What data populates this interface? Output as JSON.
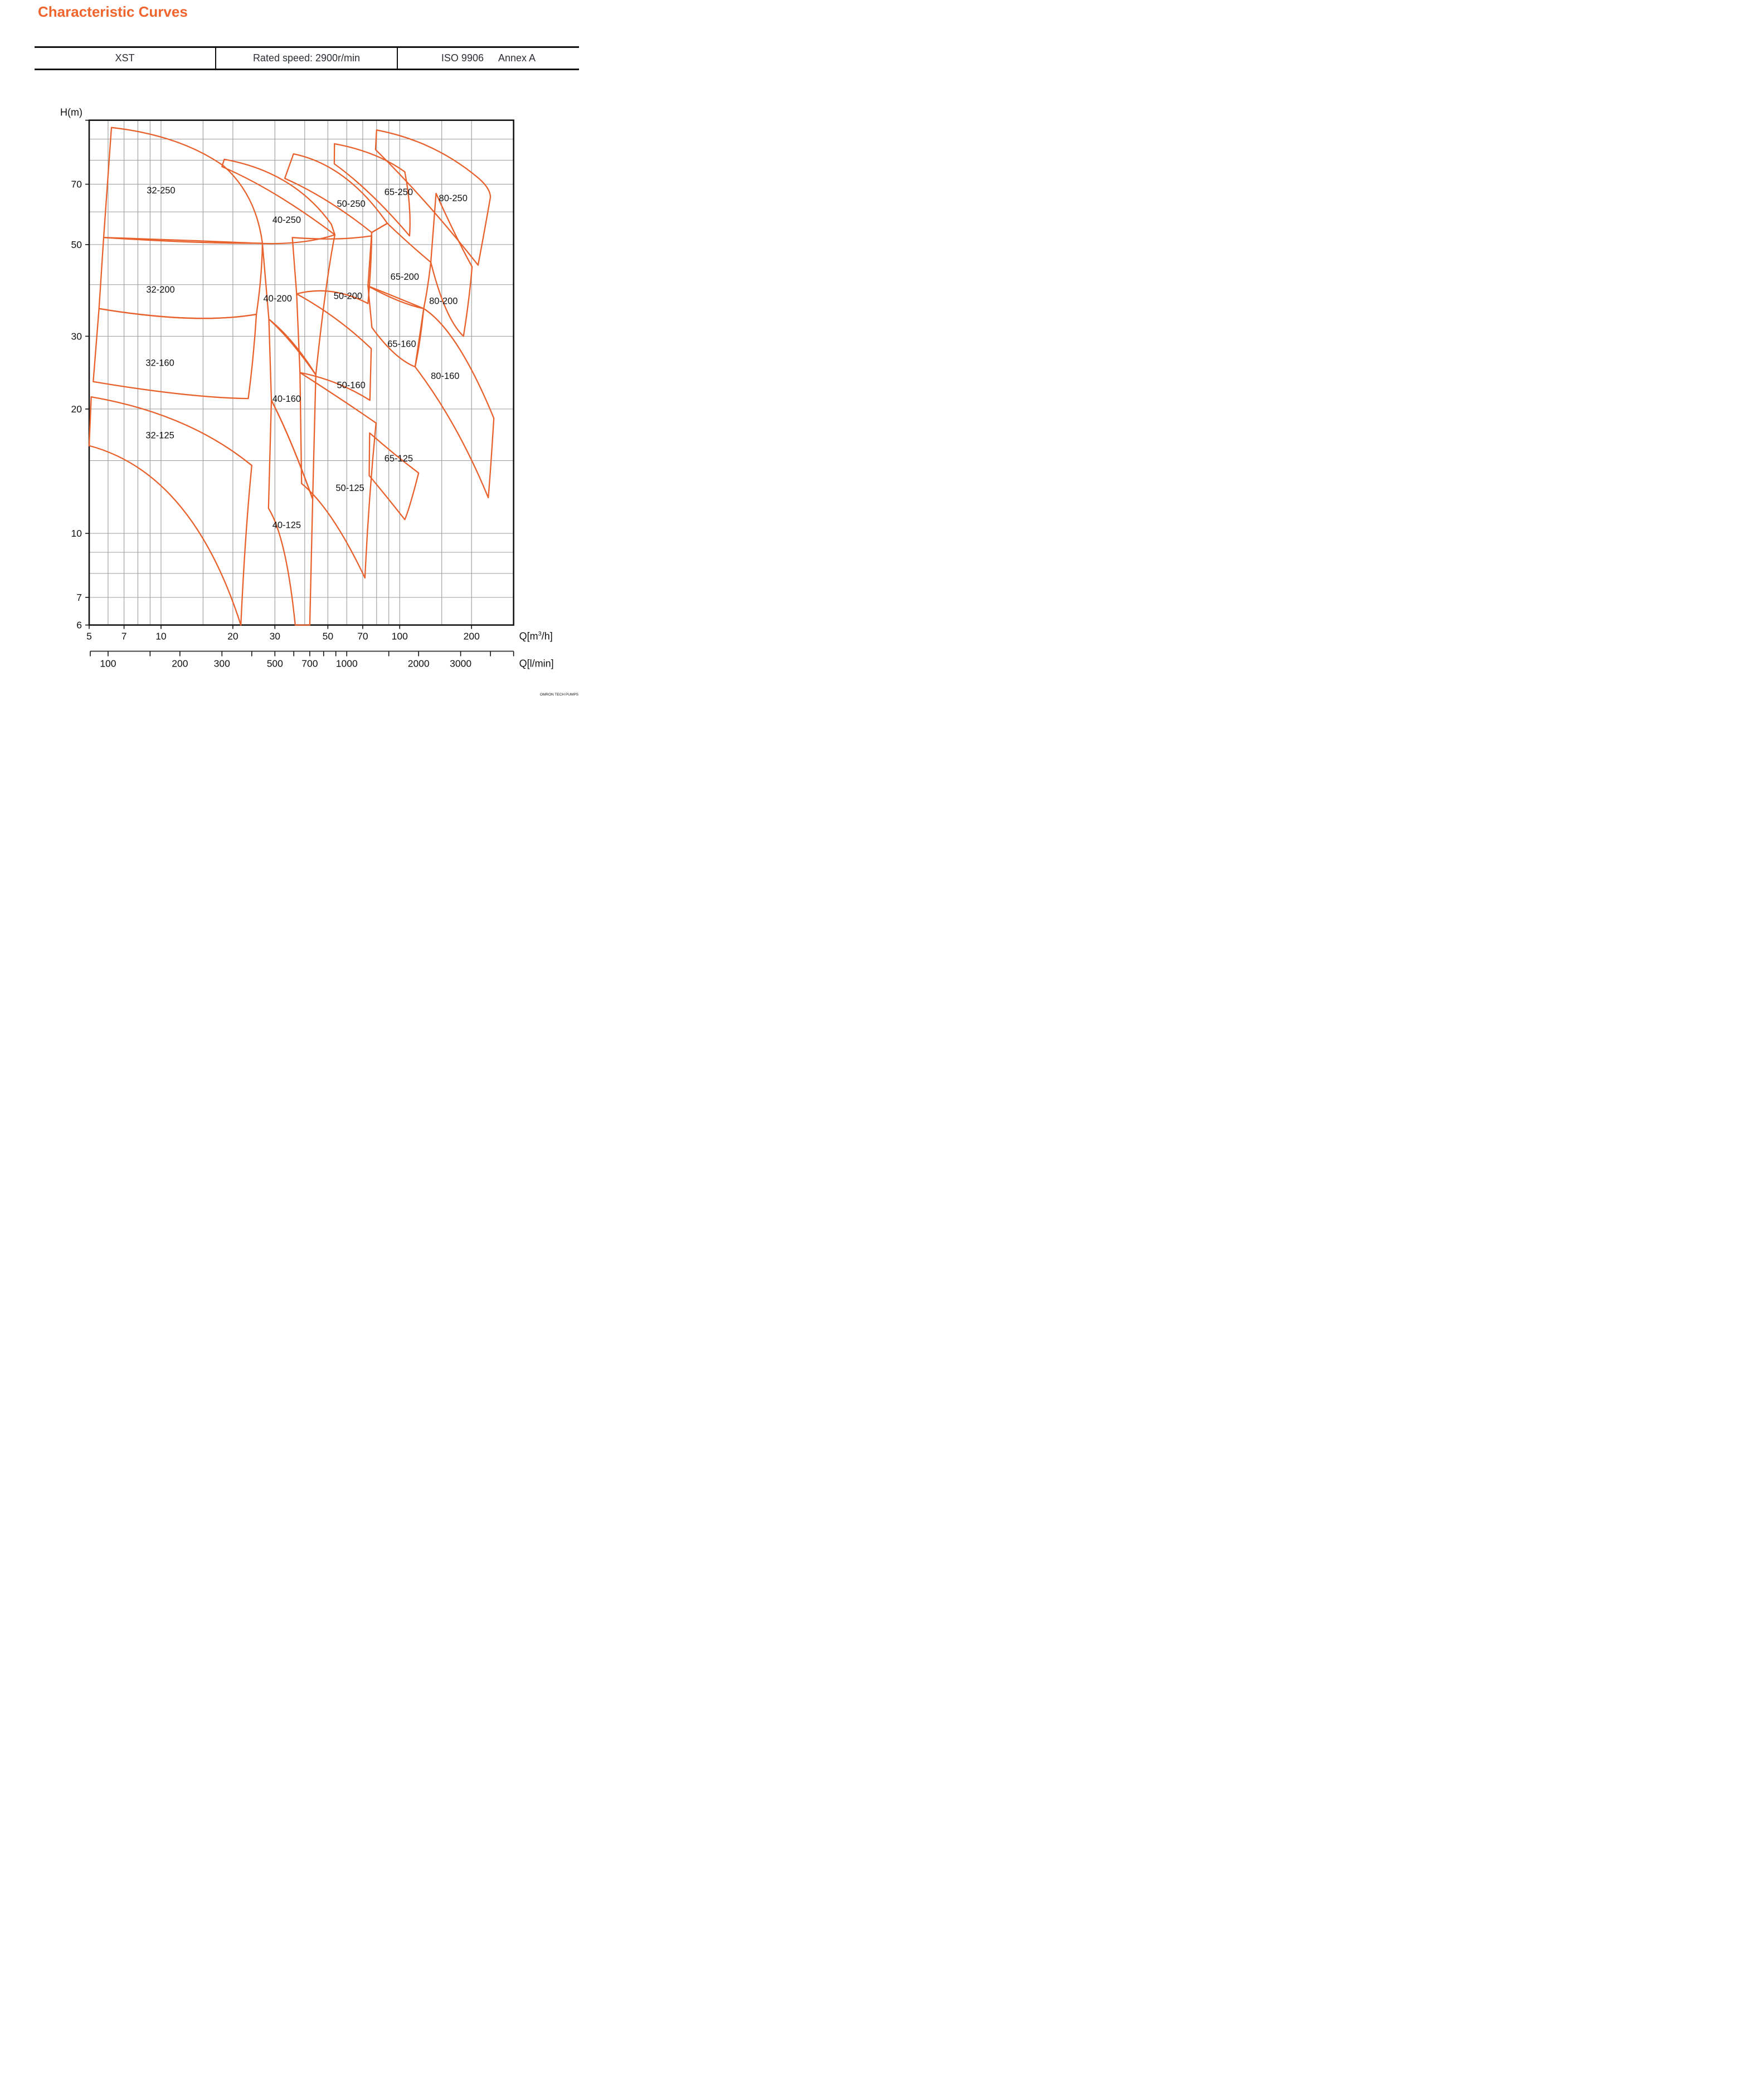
{
  "title": "Characteristic Curves",
  "title_color": "#F0642E",
  "header": {
    "series": "XST",
    "rated_speed": "Rated speed: 2900r/min",
    "standard": "ISO 9906",
    "annex": "Annex A"
  },
  "watermark": "OMRON TECH PUMPS",
  "chart_data": {
    "type": "area",
    "title": "XST pump range chart (head vs flow, log-log)",
    "style": {
      "curve_color": "#E8612C",
      "grid_color": "#9b9b9b",
      "frame_color": "#141414"
    },
    "y_axis": {
      "label": "H(m)",
      "scale": "log",
      "min": 6,
      "max": 100,
      "ticks_labeled": [
        70,
        50,
        30,
        20,
        10,
        7,
        6
      ],
      "gridlines": [
        7,
        8,
        9,
        10,
        15,
        20,
        30,
        40,
        50,
        60,
        70,
        80,
        90
      ]
    },
    "x_axis_m3h": {
      "label_pre": "Q[m",
      "label_sup": "3",
      "label_post": "/h]",
      "scale": "log",
      "min": 5,
      "max": 300,
      "ticks_labeled": [
        5,
        7,
        10,
        20,
        30,
        50,
        70,
        100,
        200
      ],
      "gridlines": [
        6,
        7,
        8,
        9,
        10,
        15,
        20,
        30,
        40,
        50,
        60,
        70,
        80,
        90,
        100,
        150,
        200
      ]
    },
    "x_axis_lmin": {
      "label": "Q[l/min]",
      "units_per_m3h": 16.6667,
      "ticks": [
        100,
        150,
        200,
        300,
        400,
        500,
        600,
        700,
        800,
        900,
        1000,
        1500,
        2000,
        3000,
        4000,
        5000
      ],
      "ticks_labeled": [
        100,
        200,
        300,
        500,
        700,
        1000,
        2000,
        3000
      ]
    },
    "regions": [
      {
        "label": "32-250",
        "label_at": [
          10,
          67.8
        ],
        "path": [
          [
            "M",
            6.2,
            96
          ],
          [
            "Q",
            12,
            92,
            18.3,
            77.5
          ],
          [
            "Q",
            25,
            66,
            26.6,
            50.4
          ],
          [
            "Q",
            15,
            50.2,
            5.75,
            52
          ],
          [
            "Z"
          ]
        ]
      },
      {
        "label": "32-200",
        "label_at": [
          9.95,
          39.0
        ],
        "path": [
          [
            "M",
            5.75,
            52
          ],
          [
            "Q",
            16,
            51,
            26.6,
            50.3
          ],
          [
            "Q",
            26.5,
            42,
            25.1,
            33.9
          ],
          [
            "Q",
            14,
            32,
            5.5,
            35
          ],
          [
            "Z"
          ]
        ]
      },
      {
        "label": "32-160",
        "label_at": [
          9.9,
          25.9
        ],
        "path": [
          [
            "M",
            5.5,
            35
          ],
          [
            "Q",
            14,
            32,
            25.1,
            33.9
          ],
          [
            "Q",
            24.5,
            27,
            23.2,
            21.2
          ],
          [
            "Q",
            13,
            21.3,
            5.2,
            23.3
          ],
          [
            "Z"
          ]
        ]
      },
      {
        "label": "32-125",
        "label_at": [
          9.9,
          17.3
        ],
        "path": [
          [
            "M",
            5.1,
            21.4
          ],
          [
            "Q",
            13,
            19.5,
            24.0,
            14.6
          ],
          [
            "Q",
            22.5,
            10,
            21.6,
            6
          ],
          [
            "Q",
            13.5,
            14,
            5.0,
            16.3
          ],
          [
            "Z"
          ]
        ]
      },
      {
        "label": "40-250",
        "label_at": [
          33.6,
          57.5
        ],
        "path": [
          [
            "M",
            18.4,
            80.4
          ],
          [
            "Q",
            36,
            75,
            51.7,
            56
          ],
          [
            "L",
            53.5,
            52.8
          ],
          [
            "Q",
            30,
            68,
            18.0,
            77.2
          ],
          [
            "Z"
          ]
        ]
      },
      {
        "label": "40-200",
        "label_at": [
          30.8,
          37.1
        ],
        "path": [
          [
            "M",
            26.6,
            50.3
          ],
          [
            "Q",
            40,
            50,
            53.5,
            52.8
          ],
          [
            "Q",
            49,
            41,
            44.5,
            24.2
          ],
          [
            "Q",
            35,
            29.5,
            28.3,
            33
          ],
          [
            "Z"
          ]
        ]
      },
      {
        "label": "40-160",
        "label_at": [
          33.6,
          21.2
        ],
        "path": [
          [
            "M",
            28.3,
            33
          ],
          [
            "Q",
            36,
            29.5,
            44.5,
            24.2
          ],
          [
            "L",
            43.2,
            12.1
          ],
          [
            "Q",
            35,
            17,
            29.0,
            21
          ],
          [
            "Z"
          ]
        ]
      },
      {
        "label": "40-125",
        "label_at": [
          33.6,
          10.5
        ],
        "path": [
          [
            "M",
            29.0,
            21
          ],
          [
            "Q",
            35,
            17,
            43.2,
            12.1
          ],
          [
            "L",
            42.0,
            6
          ],
          [
            "L",
            36.5,
            6
          ],
          [
            "Q",
            33.5,
            9.8,
            28.2,
            11.5
          ],
          [
            "Z"
          ]
        ]
      },
      {
        "label": "50-250",
        "label_at": [
          62.6,
          62.9
        ],
        "path": [
          [
            "M",
            35.9,
            82.9
          ],
          [
            "Q",
            60,
            78,
            88.7,
            56.3
          ],
          [
            "L",
            76.3,
            53.5
          ],
          [
            "Q",
            50,
            65,
            33.0,
            72.3
          ],
          [
            "Z"
          ]
        ]
      },
      {
        "label": "50-200",
        "label_at": [
          60.7,
          37.6
        ],
        "path": [
          [
            "M",
            35.5,
            52
          ],
          [
            "Q",
            55,
            51,
            76.3,
            52.5
          ],
          [
            "Q",
            76,
            44,
            73.6,
            36
          ],
          [
            "Q",
            52,
            40,
            37.0,
            38
          ],
          [
            "Z"
          ]
        ]
      },
      {
        "label": "50-160",
        "label_at": [
          62.6,
          22.9
        ],
        "path": [
          [
            "M",
            37.0,
            38
          ],
          [
            "Q",
            55,
            33.5,
            76,
            28
          ],
          [
            "L",
            75,
            21
          ],
          [
            "Q",
            55,
            23.5,
            38.2,
            24.5
          ],
          [
            "Z"
          ]
        ]
      },
      {
        "label": "50-125",
        "label_at": [
          61.9,
          12.9
        ],
        "path": [
          [
            "M",
            38.2,
            24.5
          ],
          [
            "Q",
            58,
            21,
            79.6,
            18.5
          ],
          [
            "Q",
            74,
            12,
            71.5,
            7.8
          ],
          [
            "Q",
            52,
            11.5,
            38.8,
            13.2
          ],
          [
            "Z"
          ]
        ]
      },
      {
        "label": "65-250",
        "label_at": [
          99,
          67.1
        ],
        "path": [
          [
            "M",
            53.3,
            87.7
          ],
          [
            "Q",
            80,
            84,
            105,
            75
          ],
          [
            "Q",
            112,
            62,
            110,
            52.5
          ],
          [
            "Q",
            75,
            68,
            53.2,
            78.4
          ],
          [
            "Z"
          ]
        ]
      },
      {
        "label": "65-200",
        "label_at": [
          105,
          41.9
        ],
        "path": [
          [
            "M",
            88.7,
            56.3
          ],
          [
            "Q",
            110,
            50,
            135,
            45.3
          ],
          [
            "Q",
            131,
            39,
            126,
            35
          ],
          [
            "Q",
            100,
            37,
            73.6,
            39.7
          ],
          [
            "L",
            76.3,
            53.5
          ],
          [
            "Z"
          ]
        ]
      },
      {
        "label": "65-160",
        "label_at": [
          102,
          28.8
        ],
        "path": [
          [
            "M",
            73.6,
            39.7
          ],
          [
            "Q",
            100,
            36,
            126,
            35
          ],
          [
            "Q",
            122,
            29,
            116,
            25.3
          ],
          [
            "Q",
            95,
            26.5,
            76.5,
            31.5
          ],
          [
            "Z"
          ]
        ]
      },
      {
        "label": "65-125",
        "label_at": [
          99,
          15.2
        ],
        "path": [
          [
            "M",
            74.8,
            17.5
          ],
          [
            "Q",
            95,
            15.5,
            120,
            14
          ],
          [
            "Q",
            110,
            11.5,
            105,
            10.8
          ],
          [
            "Q",
            88,
            12.3,
            74.5,
            13.8
          ],
          [
            "Z"
          ]
        ]
      },
      {
        "label": "80-250",
        "label_at": [
          167.5,
          64.9
        ],
        "path": [
          [
            "M",
            80,
            94.7
          ],
          [
            "Q",
            140,
            89,
            214,
            72.4
          ],
          [
            "Q",
            239,
            68.5,
            240,
            65.2
          ],
          [
            "Q",
            228,
            55,
            213,
            44.6
          ],
          [
            "Q",
            130,
            64,
            79.2,
            84.9
          ],
          [
            "Z"
          ]
        ]
      },
      {
        "label": "80-200",
        "label_at": [
          152.5,
          36.6
        ],
        "path": [
          [
            "M",
            142,
            66.5
          ],
          [
            "Q",
            172,
            52,
            201,
            44.2
          ],
          [
            "Q",
            196,
            37,
            185,
            30
          ],
          [
            "Q",
            155,
            33,
            135,
            45.3
          ],
          [
            "Z"
          ]
        ]
      },
      {
        "label": "80-160",
        "label_at": [
          155,
          24.1
        ],
        "path": [
          [
            "M",
            126,
            35
          ],
          [
            "Q",
            175,
            31,
            248,
            19
          ],
          [
            "Q",
            240,
            14,
            235,
            12.2
          ],
          [
            "Q",
            175,
            18.5,
            116,
            25.3
          ],
          [
            "Z"
          ]
        ]
      }
    ]
  }
}
